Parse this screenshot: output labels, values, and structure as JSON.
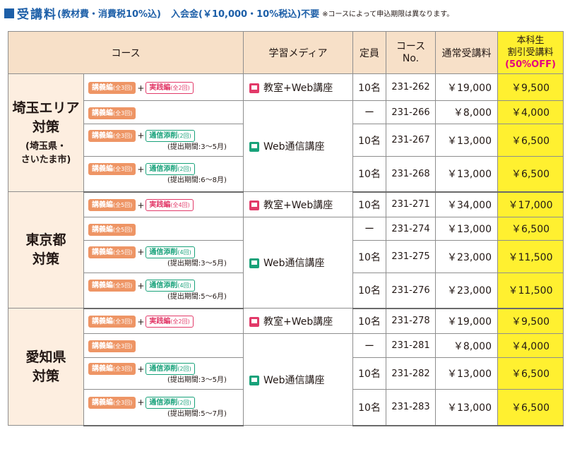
{
  "header": {
    "title": "受講料",
    "note1": "(教材費・消費税10%込)",
    "note2": "入会金(￥10,000・10%税込)不要",
    "note3": "※コースによって申込期限は異なります。"
  },
  "columns": {
    "course": "コース",
    "media": "学習メディア",
    "capacity": "定員",
    "no_line1": "コース",
    "no_line2": "No.",
    "fee": "通常受講料",
    "disc_line1": "本科生",
    "disc_line2": "割引受講料",
    "disc_line3": "(50%OFF)"
  },
  "media_labels": {
    "classroom": "教室+Web講座",
    "web": "Web通信講座"
  },
  "regions": [
    {
      "name_line1": "埼玉エリア",
      "name_line2": "対策",
      "sub_line1": "(埼玉県・",
      "sub_line2": "さいたま市)",
      "rows": [
        {
          "lecture_label": "講義編",
          "lecture_count": "(全3回)",
          "extra_label": "実践編",
          "extra_count": "(全2回)",
          "period": "",
          "capacity": "10名",
          "no": "231-262",
          "fee": "￥19,000",
          "disc": "￥9,500"
        },
        {
          "lecture_label": "講義編",
          "lecture_count": "(全3回)",
          "extra_label": "",
          "extra_count": "",
          "period": "",
          "capacity": "ー",
          "no": "231-266",
          "fee": "￥8,000",
          "disc": "￥4,000"
        },
        {
          "lecture_label": "講義編",
          "lecture_count": "(全3回)",
          "extra_label": "通信添削",
          "extra_count": "(2回)",
          "period": "(提出期間:3～5月)",
          "capacity": "10名",
          "no": "231-267",
          "fee": "￥13,000",
          "disc": "￥6,500"
        },
        {
          "lecture_label": "講義編",
          "lecture_count": "(全3回)",
          "extra_label": "通信添削",
          "extra_count": "(2回)",
          "period": "(提出期間:6～8月)",
          "capacity": "10名",
          "no": "231-268",
          "fee": "￥13,000",
          "disc": "￥6,500"
        }
      ]
    },
    {
      "name_line1": "東京都",
      "name_line2": "対策",
      "sub_line1": "",
      "sub_line2": "",
      "rows": [
        {
          "lecture_label": "講義編",
          "lecture_count": "(全5回)",
          "extra_label": "実践編",
          "extra_count": "(全4回)",
          "period": "",
          "capacity": "10名",
          "no": "231-271",
          "fee": "￥34,000",
          "disc": "￥17,000"
        },
        {
          "lecture_label": "講義編",
          "lecture_count": "(全5回)",
          "extra_label": "",
          "extra_count": "",
          "period": "",
          "capacity": "ー",
          "no": "231-274",
          "fee": "￥13,000",
          "disc": "￥6,500"
        },
        {
          "lecture_label": "講義編",
          "lecture_count": "(全5回)",
          "extra_label": "通信添削",
          "extra_count": "(4回)",
          "period": "(提出期間:3～5月)",
          "capacity": "10名",
          "no": "231-275",
          "fee": "￥23,000",
          "disc": "￥11,500"
        },
        {
          "lecture_label": "講義編",
          "lecture_count": "(全5回)",
          "extra_label": "通信添削",
          "extra_count": "(4回)",
          "period": "(提出期間:5～6月)",
          "capacity": "10名",
          "no": "231-276",
          "fee": "￥23,000",
          "disc": "￥11,500"
        }
      ]
    },
    {
      "name_line1": "愛知県",
      "name_line2": "対策",
      "sub_line1": "",
      "sub_line2": "",
      "rows": [
        {
          "lecture_label": "講義編",
          "lecture_count": "(全3回)",
          "extra_label": "実践編",
          "extra_count": "(全2回)",
          "period": "",
          "capacity": "10名",
          "no": "231-278",
          "fee": "￥19,000",
          "disc": "￥9,500"
        },
        {
          "lecture_label": "講義編",
          "lecture_count": "(全3回)",
          "extra_label": "",
          "extra_count": "",
          "period": "",
          "capacity": "ー",
          "no": "231-281",
          "fee": "￥8,000",
          "disc": "￥4,000"
        },
        {
          "lecture_label": "講義編",
          "lecture_count": "(全3回)",
          "extra_label": "通信添削",
          "extra_count": "(2回)",
          "period": "(提出期間:3～5月)",
          "capacity": "10名",
          "no": "231-282",
          "fee": "￥13,000",
          "disc": "￥6,500"
        },
        {
          "lecture_label": "講義編",
          "lecture_count": "(全3回)",
          "extra_label": "通信添削",
          "extra_count": "(2回)",
          "period": "(提出期間:5～7月)",
          "capacity": "10名",
          "no": "231-283",
          "fee": "￥13,000",
          "disc": "￥6,500"
        }
      ]
    }
  ]
}
